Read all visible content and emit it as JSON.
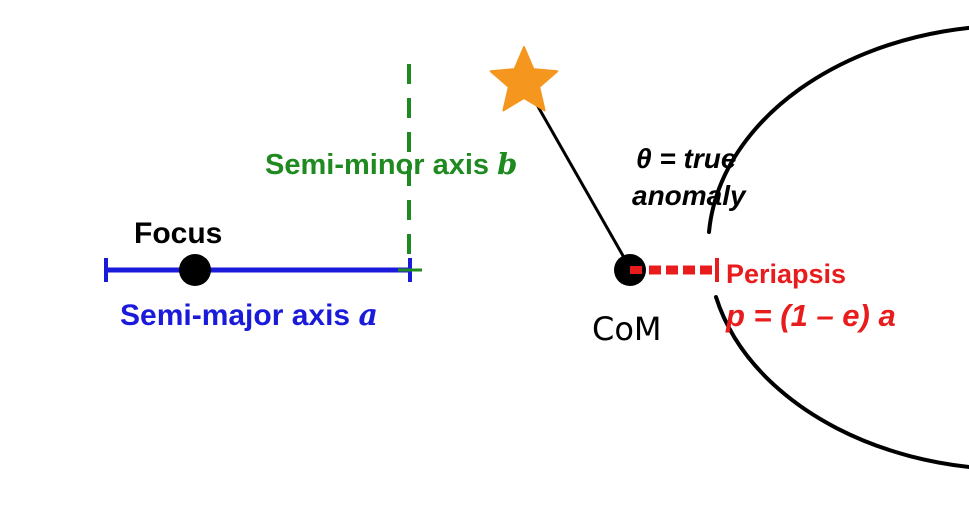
{
  "colors": {
    "orbit": "#000000",
    "semi_major": "#1a1adb",
    "semi_minor": "#1f8a1f",
    "periapsis": "#e81c1c",
    "star": "#f5961e",
    "text": "#000000"
  },
  "labels": {
    "focus": "Focus",
    "semi_major_text": "Semi-major axis ",
    "semi_major_var": "a",
    "semi_minor_text": "Semi-minor axis ",
    "semi_minor_var": "b",
    "true_anomaly_line1": "θ = true",
    "true_anomaly_line2": "anomaly",
    "com": "CoM",
    "periapsis": "Periapsis",
    "periapsis_formula": "p = (1 – e) a"
  },
  "icons": {
    "orbiting_body": "star-icon",
    "focus_point": "focus-dot-icon",
    "com_point": "com-dot-icon"
  }
}
